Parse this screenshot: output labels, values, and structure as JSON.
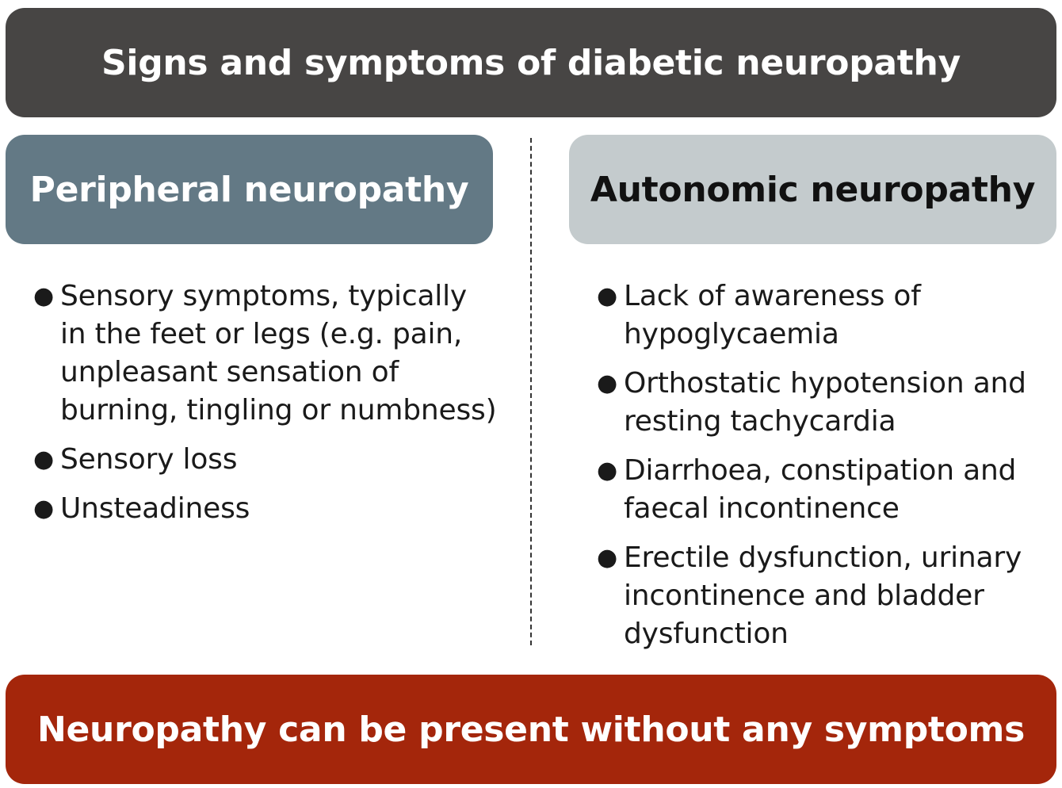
{
  "header": {
    "title": "Signs and symptoms of diabetic neuropathy"
  },
  "peripheral": {
    "title": "Peripheral neuropathy",
    "items": [
      "Sensory symptoms, typically in the feet or legs (e.g. pain, unpleasant sensation of burning, tingling or numbness)",
      "Sensory loss",
      "Unsteadiness"
    ]
  },
  "autonomic": {
    "title": "Autonomic neuropathy",
    "items": [
      "Lack of awareness of hypoglycaemia",
      "Orthostatic hypotension and resting tachycardia",
      "Diarrhoea, constipation and faecal incontinence",
      "Erectile dysfunction, urinary incontinence and bladder dysfunction"
    ]
  },
  "footer": {
    "message": "Neuropathy can be present without any symptoms"
  },
  "colors": {
    "header_bg": "#474544",
    "peripheral_bg": "#637985",
    "autonomic_bg": "#c4cbcd",
    "footer_bg": "#a4260b"
  }
}
